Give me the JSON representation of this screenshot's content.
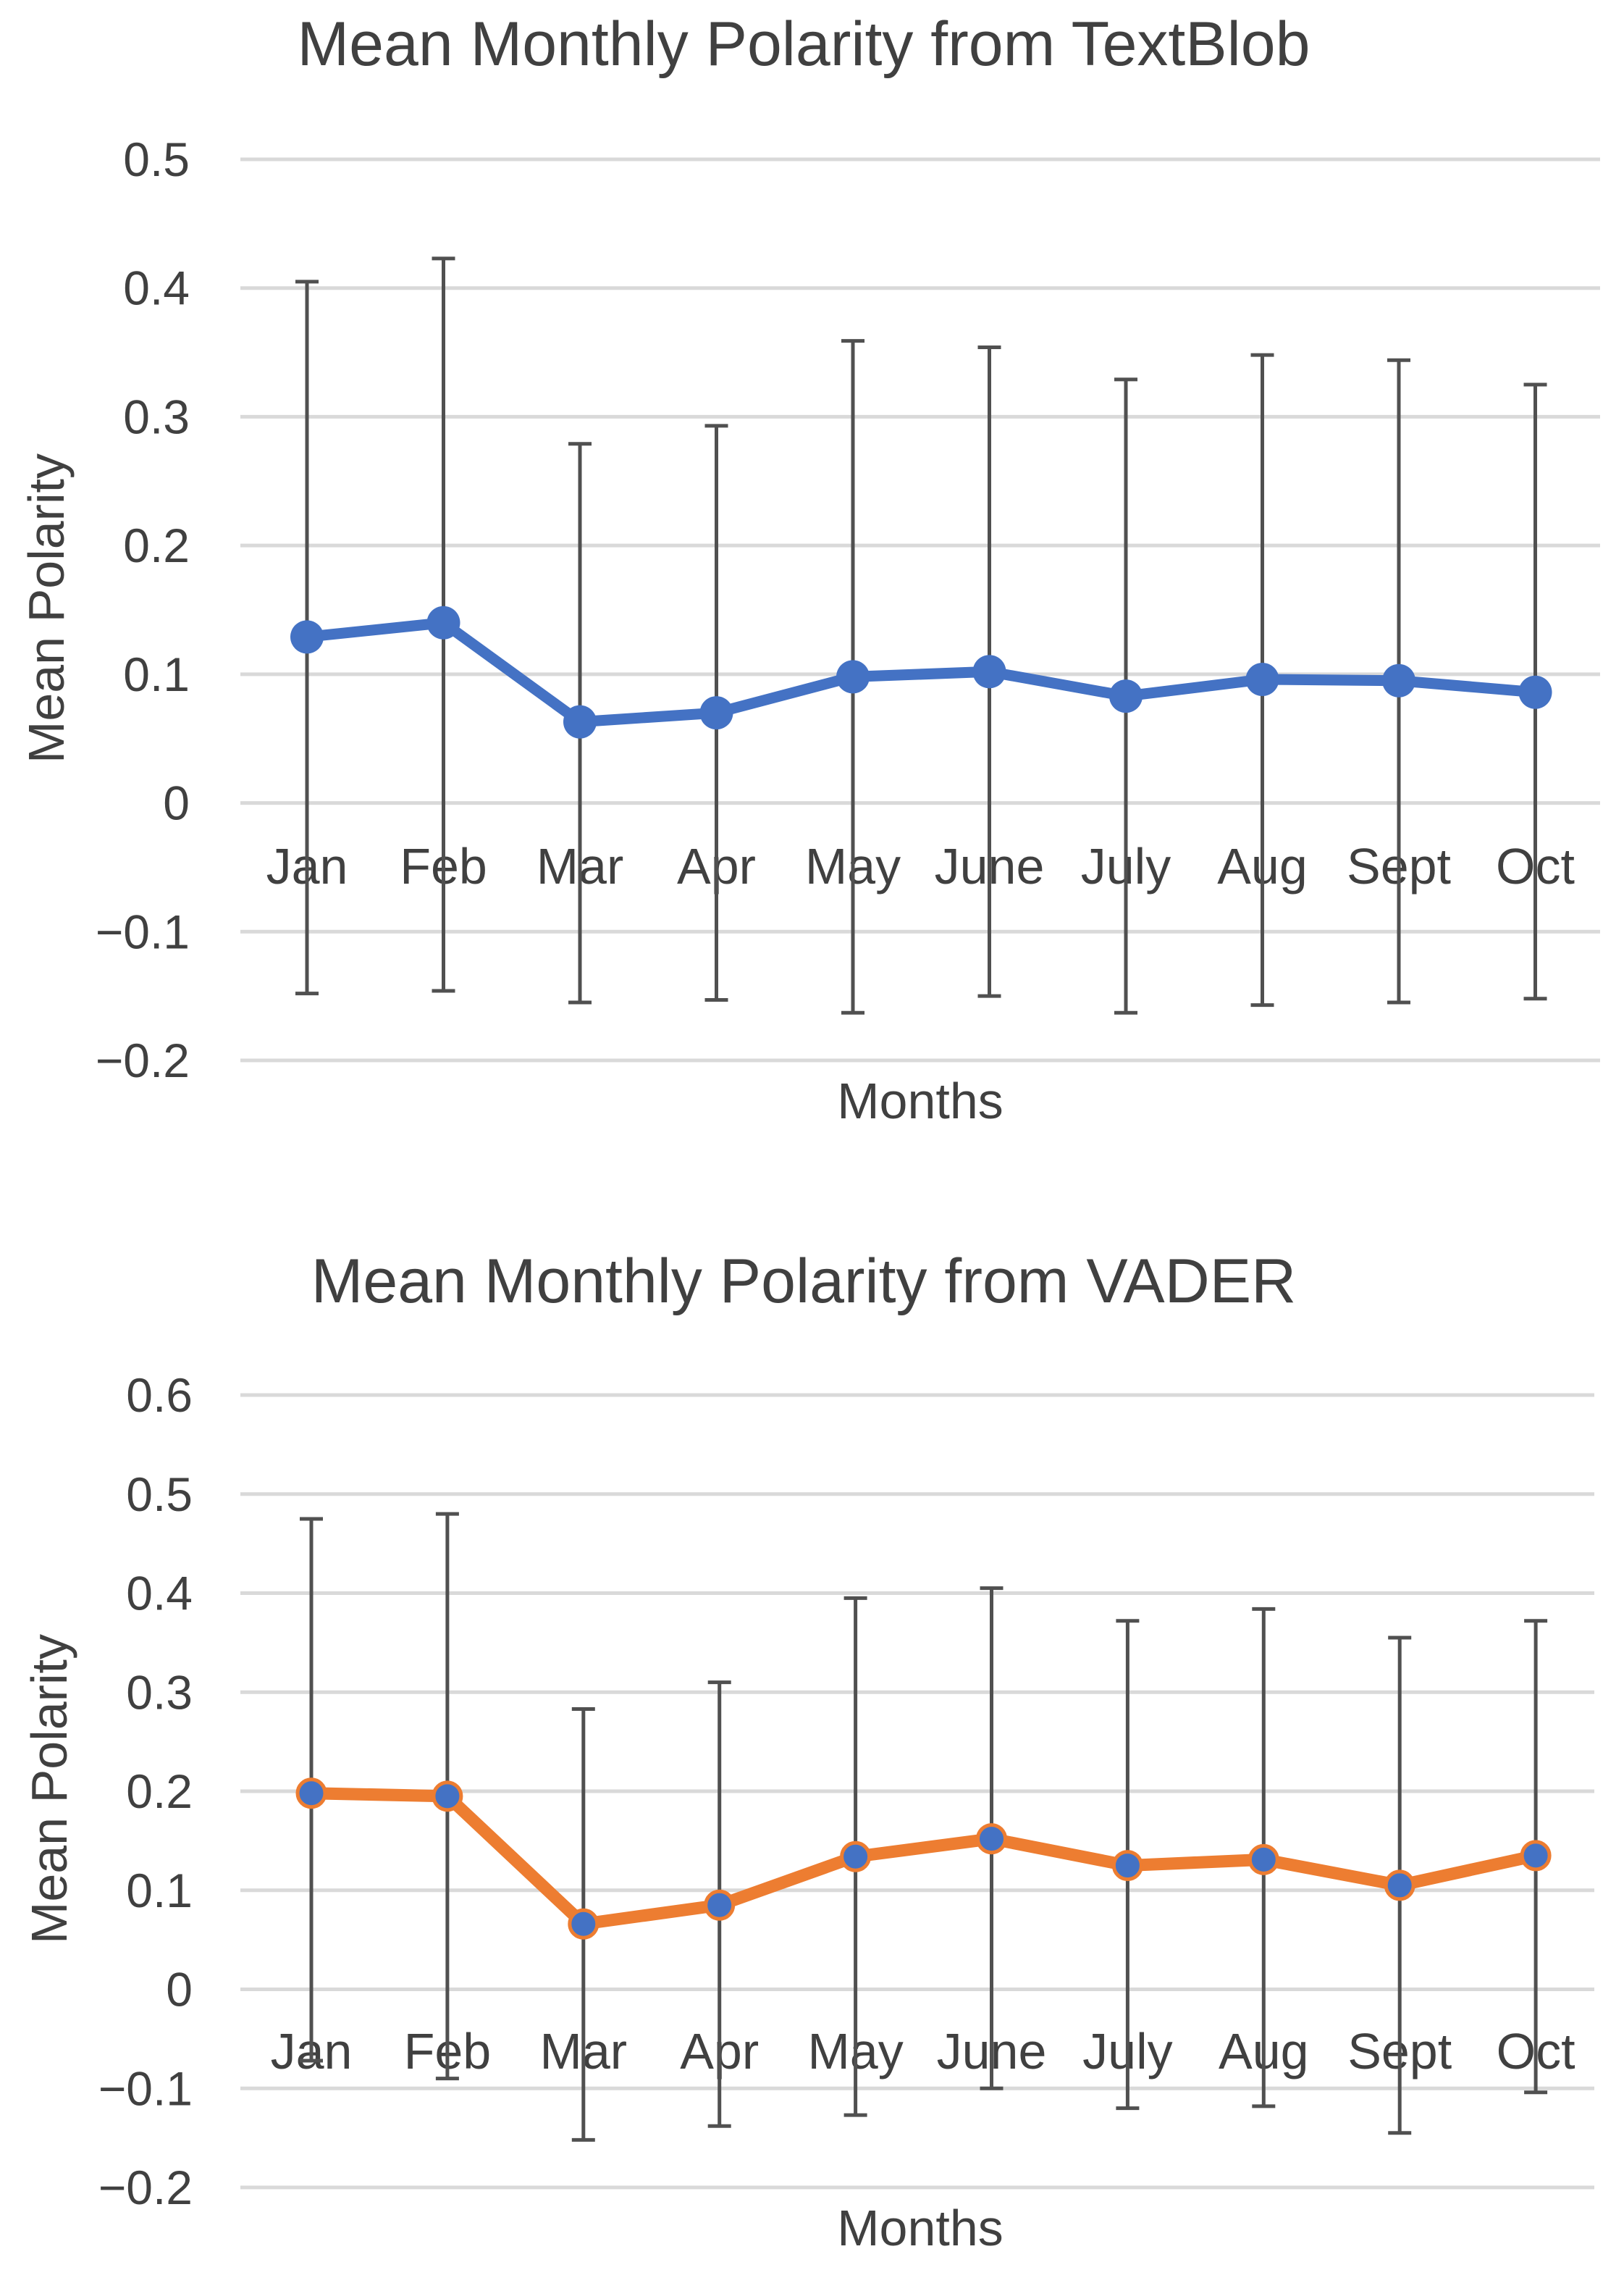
{
  "chart_data": [
    {
      "type": "line",
      "title": "Mean Monthly Polarity from TextBlob",
      "xlabel": "Months",
      "ylabel": "Mean Polarity",
      "ylim": [
        -0.2,
        0.5
      ],
      "yticks": [
        0.5,
        0.4,
        0.3,
        0.2,
        0.1,
        0,
        -0.1,
        -0.2
      ],
      "ytick_labels": [
        "0.5",
        "0.4",
        "0.3",
        "0.2",
        "0.1",
        "0",
        "−0.1",
        "−0.2"
      ],
      "categories": [
        "Jan",
        "Feb",
        "Mar",
        "Apr",
        "May",
        "June",
        "July",
        "Aug",
        "Sept",
        "Oct"
      ],
      "series": [
        {
          "name": "Mean Polarity",
          "color": "#4472c4",
          "marker_color": "#4472c4",
          "values": [
            0.129,
            0.14,
            0.063,
            0.07,
            0.098,
            0.102,
            0.083,
            0.096,
            0.095,
            0.086
          ],
          "error_upper": [
            0.405,
            0.423,
            0.279,
            0.293,
            0.359,
            0.354,
            0.329,
            0.348,
            0.344,
            0.325
          ],
          "error_lower": [
            -0.148,
            -0.146,
            -0.155,
            -0.153,
            -0.163,
            -0.15,
            -0.163,
            -0.157,
            -0.155,
            -0.152
          ]
        }
      ]
    },
    {
      "type": "line",
      "title": "Mean Monthly Polarity from VADER",
      "xlabel": "Months",
      "ylabel": "Mean Polarity",
      "ylim": [
        -0.2,
        0.6
      ],
      "yticks": [
        0.6,
        0.5,
        0.4,
        0.3,
        0.2,
        0.1,
        0,
        -0.1,
        -0.2
      ],
      "ytick_labels": [
        "0.6",
        "0.5",
        "0.4",
        "0.3",
        "0.2",
        "0.1",
        "0",
        "−0.1",
        "−0.2"
      ],
      "categories": [
        "Jan",
        "Feb",
        "Mar",
        "Apr",
        "May",
        "June",
        "July",
        "Aug",
        "Sept",
        "Oct"
      ],
      "series": [
        {
          "name": "Mean Polarity",
          "color": "#ed7d31",
          "marker_color": "#4472c4",
          "values": [
            0.198,
            0.195,
            0.066,
            0.085,
            0.134,
            0.152,
            0.125,
            0.131,
            0.105,
            0.135
          ],
          "error_upper": [
            0.475,
            0.48,
            0.283,
            0.31,
            0.395,
            0.405,
            0.372,
            0.384,
            0.355,
            0.372
          ],
          "error_lower": [
            -0.072,
            -0.09,
            -0.152,
            -0.138,
            -0.127,
            -0.1,
            -0.12,
            -0.118,
            -0.145,
            -0.104
          ]
        }
      ]
    }
  ]
}
